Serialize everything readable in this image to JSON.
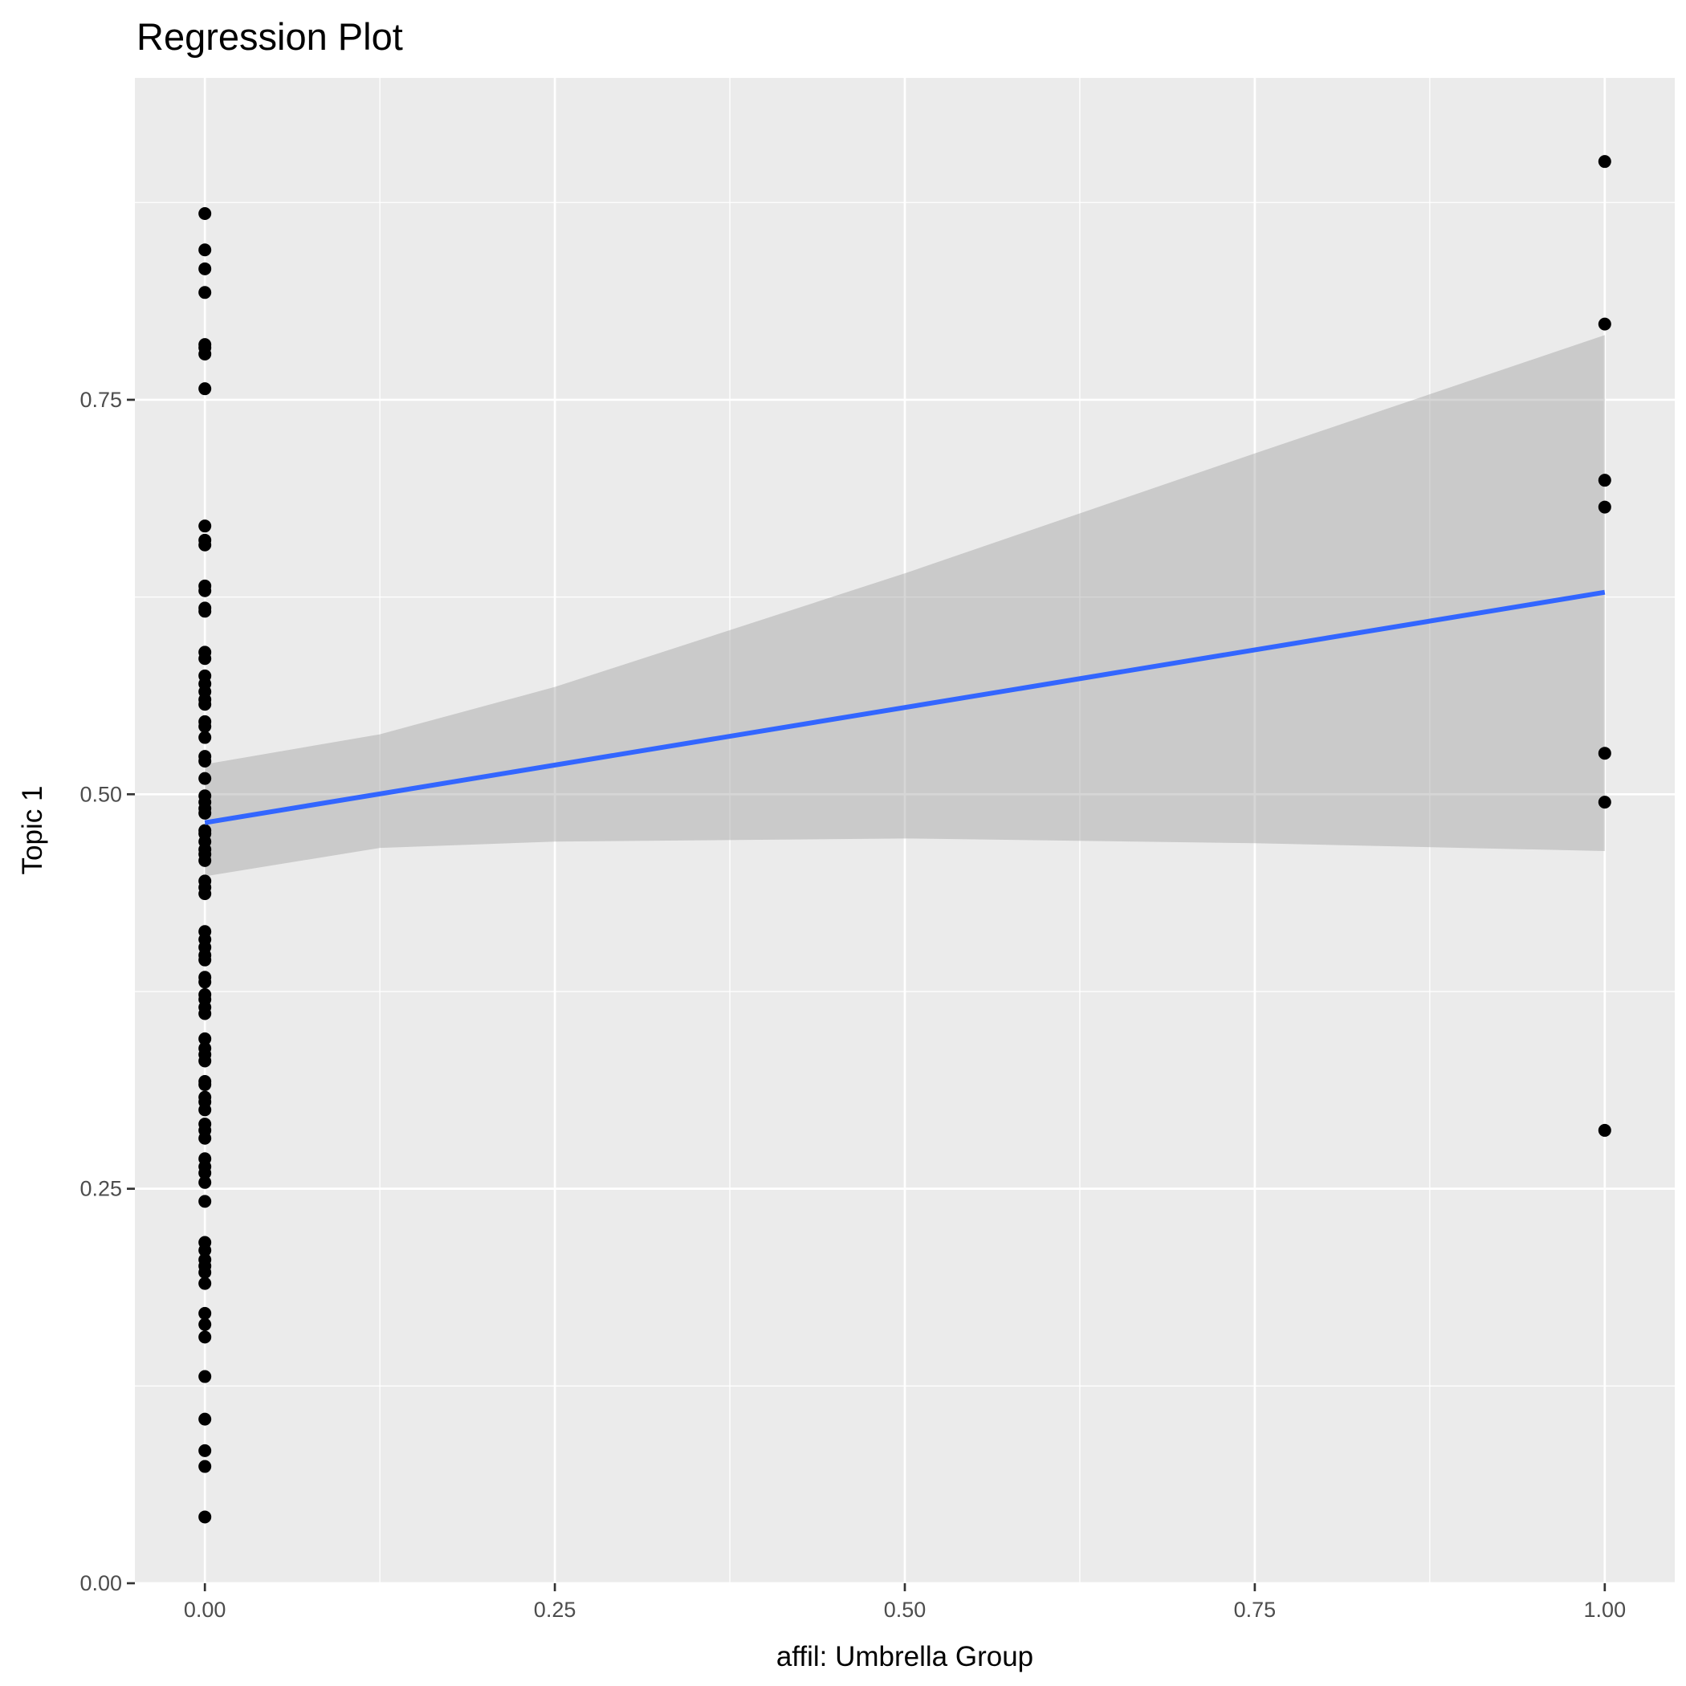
{
  "chart_data": {
    "type": "scatter",
    "title": "Regression Plot",
    "xlabel": "affil: Umbrella Group",
    "ylabel": "Topic 1",
    "xlim": [
      -0.05,
      1.05
    ],
    "ylim": [
      0.0,
      0.954
    ],
    "grid": true,
    "x_ticks": [
      0,
      0.25,
      0.5,
      0.75,
      1
    ],
    "x_tick_labels": [
      "0.00",
      "0.25",
      "0.50",
      "0.75",
      "1.00"
    ],
    "y_ticks": [
      0,
      0.25,
      0.5,
      0.75
    ],
    "y_tick_labels": [
      "0.00",
      "0.25",
      "0.50",
      "0.75"
    ],
    "series": [
      {
        "name": "affil = 0",
        "x": 0,
        "y": [
          0.868,
          0.845,
          0.833,
          0.818,
          0.785,
          0.783,
          0.779,
          0.757,
          0.67,
          0.661,
          0.658,
          0.632,
          0.629,
          0.618,
          0.616,
          0.59,
          0.586,
          0.575,
          0.57,
          0.565,
          0.56,
          0.557,
          0.546,
          0.543,
          0.536,
          0.524,
          0.521,
          0.51,
          0.499,
          0.495,
          0.491,
          0.488,
          0.477,
          0.475,
          0.47,
          0.465,
          0.462,
          0.458,
          0.445,
          0.441,
          0.437,
          0.413,
          0.408,
          0.403,
          0.398,
          0.395,
          0.384,
          0.381,
          0.373,
          0.37,
          0.365,
          0.361,
          0.345,
          0.339,
          0.335,
          0.331,
          0.318,
          0.316,
          0.308,
          0.305,
          0.3,
          0.291,
          0.287,
          0.282,
          0.269,
          0.264,
          0.26,
          0.254,
          0.242,
          0.216,
          0.211,
          0.205,
          0.201,
          0.197,
          0.19,
          0.171,
          0.164,
          0.156,
          0.131,
          0.104,
          0.084,
          0.074,
          0.042
        ]
      },
      {
        "name": "affil = 1",
        "x": 1,
        "y": [
          0.901,
          0.798,
          0.699,
          0.682,
          0.526,
          0.495,
          0.287
        ]
      }
    ],
    "regression_line": {
      "x": [
        0,
        1
      ],
      "y": [
        0.482,
        0.628
      ],
      "color": "#3366FF"
    },
    "confidence_band": {
      "x": [
        0,
        0.125,
        0.25,
        0.5,
        0.75,
        1
      ],
      "upper": [
        0.519,
        0.538,
        0.568,
        0.64,
        0.716,
        0.791
      ],
      "lower": [
        0.448,
        0.466,
        0.47,
        0.472,
        0.469,
        0.464
      ],
      "color": "#999999"
    },
    "colors": {
      "panel": "#EBEBEB",
      "grid": "#FFFFFF",
      "points": "#000000"
    }
  }
}
